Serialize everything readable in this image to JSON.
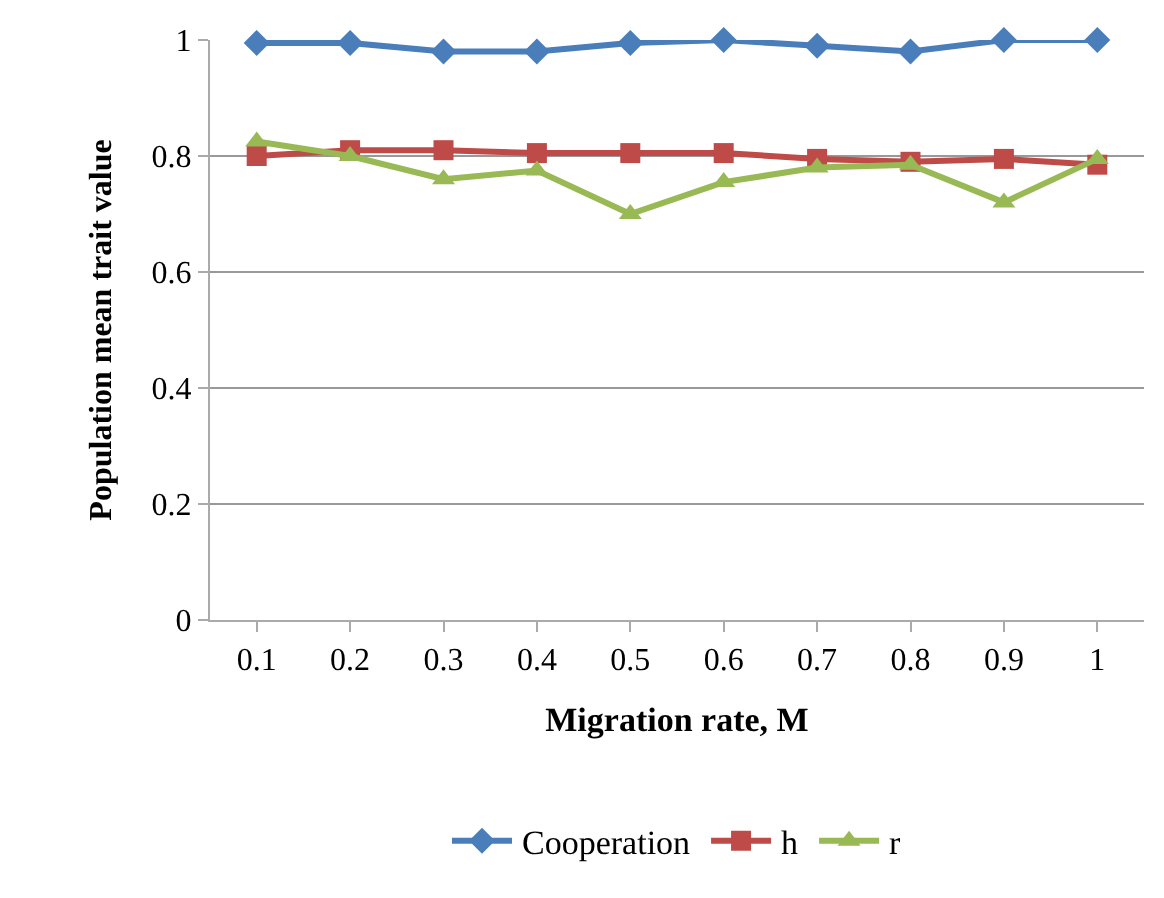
{
  "chart_data": {
    "type": "line",
    "xlabel": "Migration rate, M",
    "ylabel": "Population mean trait value",
    "categories": [
      "0.1",
      "0.2",
      "0.3",
      "0.4",
      "0.5",
      "0.6",
      "0.7",
      "0.8",
      "0.9",
      "1"
    ],
    "series": [
      {
        "name": "Cooperation",
        "color": "#4a7ebb",
        "marker": "diamond",
        "values": [
          0.995,
          0.995,
          0.98,
          0.98,
          0.995,
          1.0,
          0.99,
          0.98,
          1.0,
          1.0
        ]
      },
      {
        "name": "h",
        "color": "#be4b48",
        "marker": "square",
        "values": [
          0.8,
          0.81,
          0.81,
          0.805,
          0.805,
          0.805,
          0.795,
          0.79,
          0.795,
          0.785
        ]
      },
      {
        "name": "r",
        "color": "#98b954",
        "marker": "triangle",
        "values": [
          0.825,
          0.8,
          0.76,
          0.775,
          0.7,
          0.755,
          0.78,
          0.785,
          0.72,
          0.795
        ]
      }
    ],
    "ylim": [
      0,
      1
    ],
    "yticks": [
      0,
      0.2,
      0.4,
      0.6,
      0.8,
      1
    ],
    "grid": "y",
    "legend": "bottom",
    "line_style": "solid"
  }
}
